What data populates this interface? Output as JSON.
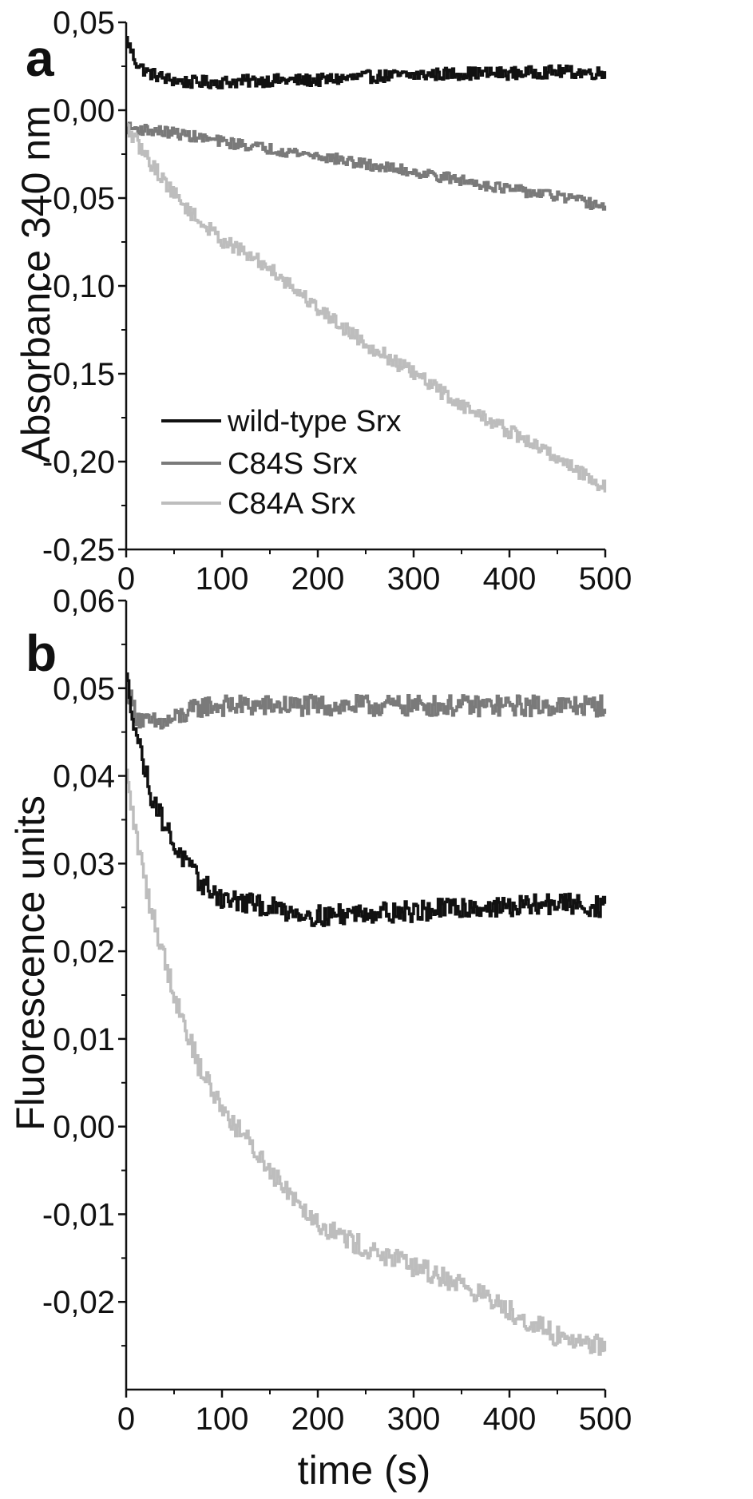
{
  "chart_data": [
    {
      "type": "line",
      "panel_label": "a",
      "ylabel": "Absorbance 340 nm",
      "xlabel": "",
      "xlim": [
        0,
        500
      ],
      "ylim": [
        -0.25,
        0.05
      ],
      "x_ticks": [
        0,
        100,
        200,
        300,
        400,
        500
      ],
      "x_tick_labels": [
        "0",
        "100",
        "200",
        "300",
        "400",
        "500"
      ],
      "y_ticks": [
        0.05,
        0.0,
        -0.05,
        -0.1,
        -0.15,
        -0.2,
        -0.25
      ],
      "y_tick_labels": [
        "0,05",
        "0,00",
        "-0,05",
        "-0,10",
        "-0,15",
        "-0,20",
        "-0,25"
      ],
      "grid": false,
      "legend_position": "bottom-left",
      "series": [
        {
          "name": "wild-type Srx",
          "color": "#111111",
          "x": [
            0,
            10,
            20,
            40,
            60,
            100,
            150,
            200,
            250,
            300,
            350,
            400,
            450,
            500
          ],
          "y": [
            0.04,
            0.027,
            0.022,
            0.018,
            0.016,
            0.016,
            0.017,
            0.017,
            0.019,
            0.02,
            0.021,
            0.021,
            0.022,
            0.021
          ],
          "noise": 0.0035
        },
        {
          "name": "C84S Srx",
          "color": "#7a7a7a",
          "x": [
            0,
            50,
            100,
            150,
            200,
            250,
            300,
            350,
            400,
            450,
            500
          ],
          "y": [
            -0.01,
            -0.013,
            -0.018,
            -0.022,
            -0.026,
            -0.031,
            -0.035,
            -0.04,
            -0.045,
            -0.049,
            -0.055
          ],
          "noise": 0.003
        },
        {
          "name": "C84A Srx",
          "color": "#bdbdbd",
          "x": [
            0,
            10,
            25,
            50,
            75,
            100,
            150,
            200,
            250,
            300,
            350,
            400,
            450,
            500
          ],
          "y": [
            -0.01,
            -0.018,
            -0.03,
            -0.048,
            -0.063,
            -0.074,
            -0.09,
            -0.113,
            -0.133,
            -0.15,
            -0.168,
            -0.183,
            -0.198,
            -0.215
          ],
          "noise": 0.004
        }
      ]
    },
    {
      "type": "line",
      "panel_label": "b",
      "ylabel": "Fluorescence units",
      "xlabel": "time (s)",
      "xlim": [
        0,
        500
      ],
      "ylim": [
        -0.03,
        0.06
      ],
      "x_ticks": [
        0,
        100,
        200,
        300,
        400,
        500
      ],
      "x_tick_labels": [
        "0",
        "100",
        "200",
        "300",
        "400",
        "500"
      ],
      "y_ticks": [
        0.06,
        0.05,
        0.04,
        0.03,
        0.02,
        0.01,
        0.0,
        -0.01,
        -0.02
      ],
      "y_tick_labels": [
        "0,06",
        "0,05",
        "0,04",
        "0,03",
        "0,02",
        "0,01",
        "0,00",
        "-0,01",
        "-0,02"
      ],
      "grid": false,
      "series": [
        {
          "name": "",
          "color": "#7a7a7a",
          "x": [
            0,
            10,
            20,
            40,
            60,
            80,
            100,
            150,
            200,
            250,
            300,
            350,
            400,
            450,
            500
          ],
          "y": [
            0.05,
            0.047,
            0.046,
            0.046,
            0.047,
            0.048,
            0.048,
            0.048,
            0.048,
            0.048,
            0.048,
            0.048,
            0.048,
            0.048,
            0.048
          ],
          "noise": 0.0012
        },
        {
          "name": "",
          "color": "#111111",
          "x": [
            0,
            10,
            25,
            50,
            75,
            100,
            150,
            200,
            250,
            300,
            350,
            400,
            450,
            500
          ],
          "y": [
            0.051,
            0.045,
            0.038,
            0.032,
            0.028,
            0.026,
            0.025,
            0.024,
            0.0245,
            0.0245,
            0.025,
            0.025,
            0.0255,
            0.025
          ],
          "noise": 0.0012
        },
        {
          "name": "",
          "color": "#bdbdbd",
          "x": [
            0,
            10,
            25,
            50,
            75,
            100,
            150,
            200,
            250,
            300,
            350,
            400,
            450,
            500
          ],
          "y": [
            0.04,
            0.033,
            0.025,
            0.015,
            0.007,
            0.002,
            -0.005,
            -0.011,
            -0.014,
            -0.016,
            -0.018,
            -0.021,
            -0.024,
            -0.025
          ],
          "noise": 0.0012
        }
      ]
    }
  ]
}
